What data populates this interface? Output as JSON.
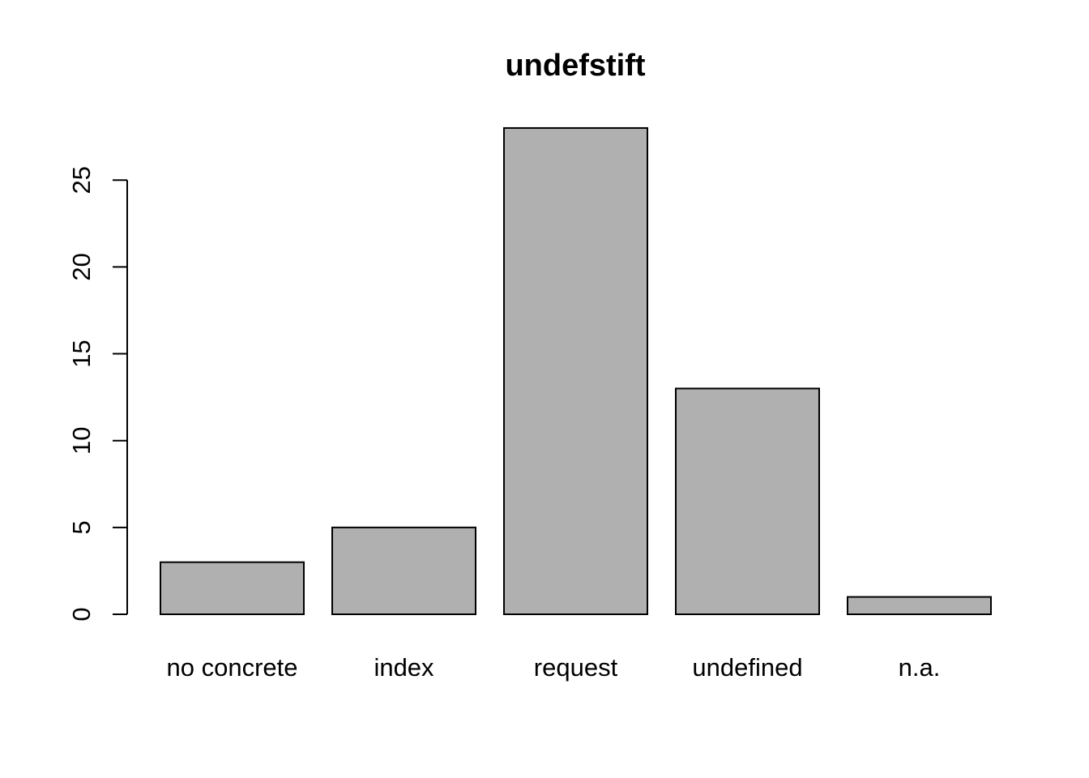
{
  "chart_data": {
    "type": "bar",
    "title": "undefstift",
    "xlabel": "",
    "ylabel": "",
    "categories": [
      "no concrete",
      "index",
      "request",
      "undefined",
      "n.a."
    ],
    "values": [
      3,
      5,
      28,
      13,
      1
    ],
    "ylim": [
      0,
      28
    ],
    "yticks": [
      "0",
      "5",
      "10",
      "15",
      "20",
      "25"
    ],
    "grid": false,
    "bar_color": "#b0b0b0",
    "border_color": "#000000"
  }
}
